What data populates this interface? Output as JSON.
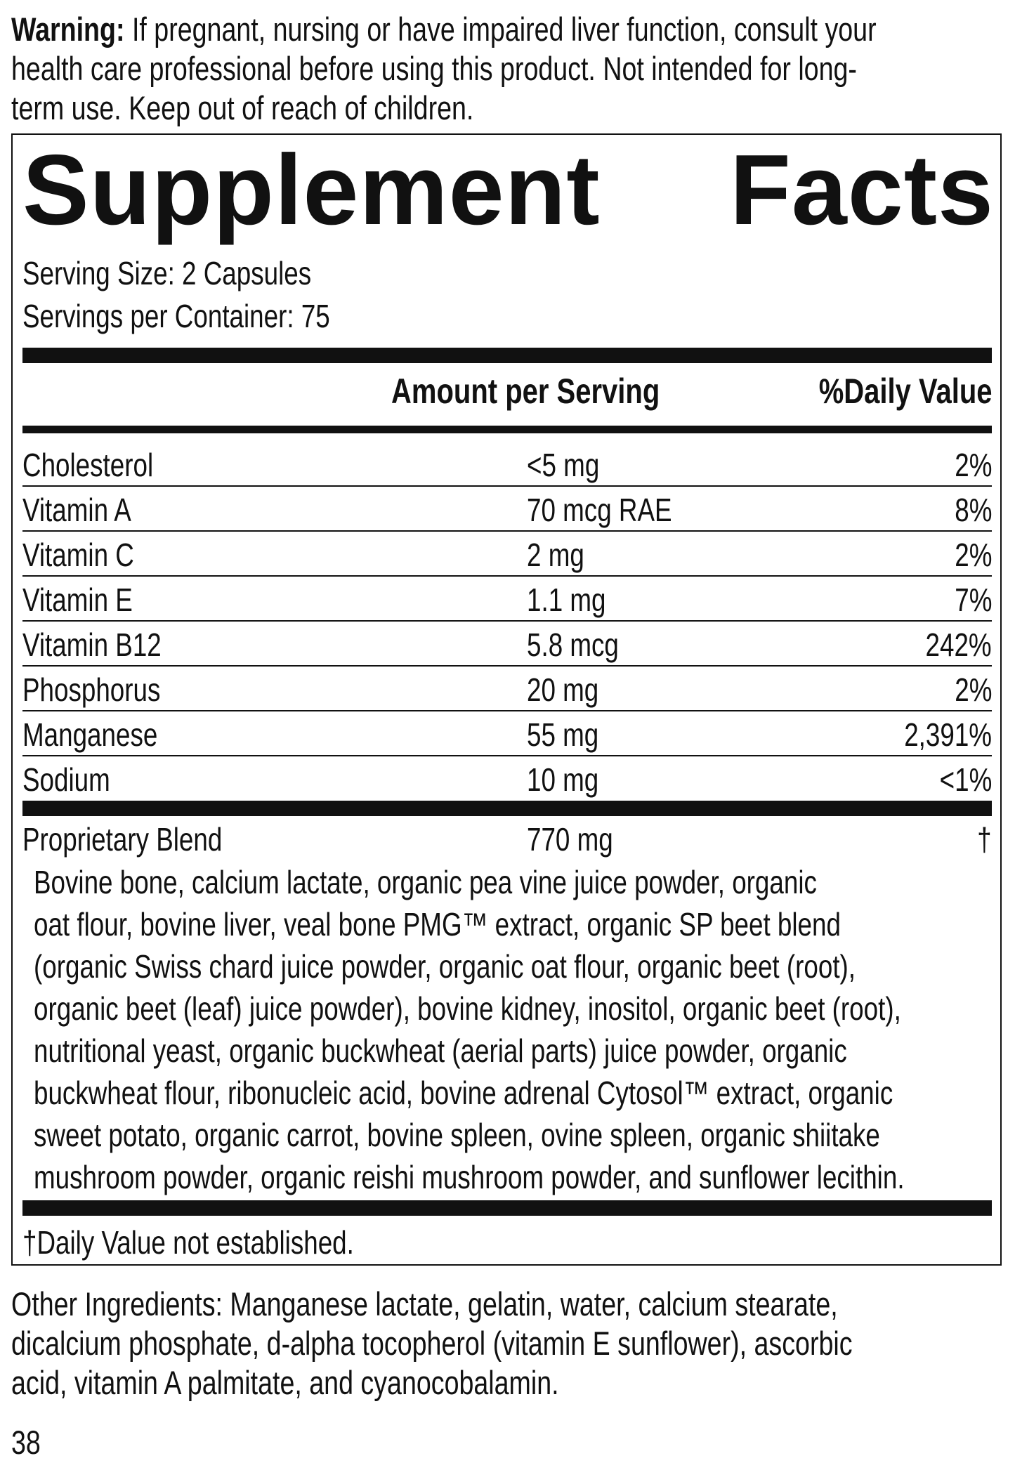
{
  "warning": {
    "label": "Warning:",
    "lines": [
      "If pregnant, nursing or have impaired liver function, consult your",
      "health care professional before using this product. Not intended for long-",
      "term use. Keep out of reach of children."
    ]
  },
  "title": {
    "word1": "Supplement",
    "word2": "Facts"
  },
  "serving_size": "Serving Size: 2 Capsules",
  "servings_per_container": "Servings per Container: 75",
  "headers": {
    "amount": "Amount per Serving",
    "dv": "%Daily Value"
  },
  "rows": [
    {
      "name": "Cholesterol",
      "amount": "<5 mg",
      "dv": "2%"
    },
    {
      "name": "Vitamin A",
      "amount": "70 mcg RAE",
      "dv": "8%"
    },
    {
      "name": "Vitamin C",
      "amount": "2 mg",
      "dv": "2%"
    },
    {
      "name": "Vitamin E",
      "amount": "1.1 mg",
      "dv": "7%"
    },
    {
      "name": "Vitamin B12",
      "amount": "5.8 mcg",
      "dv": "242%"
    },
    {
      "name": "Phosphorus",
      "amount": "20 mg",
      "dv": "2%"
    },
    {
      "name": "Manganese",
      "amount": "55 mg",
      "dv": "2,391%"
    },
    {
      "name": "Sodium",
      "amount": "10 mg",
      "dv": "<1%"
    }
  ],
  "blend": {
    "name": "Proprietary Blend",
    "amount": "770 mg",
    "dv": "†",
    "lines": [
      "Bovine bone, calcium lactate, organic pea vine juice powder, organic",
      "oat flour, bovine liver, veal bone PMG™ extract, organic SP beet blend",
      "(organic Swiss chard juice powder, organic oat flour, organic beet (root),",
      "organic beet (leaf) juice powder), bovine kidney, inositol, organic beet (root),",
      "nutritional yeast, organic buckwheat (aerial parts) juice powder, organic",
      "buckwheat flour, ribonucleic acid, bovine adrenal Cytosol™ extract, organic",
      "sweet potato, organic carrot, bovine spleen, ovine spleen, organic shiitake",
      "mushroom powder, organic reishi mushroom powder, and sunflower lecithin."
    ]
  },
  "footnote": "†Daily Value not established.",
  "other_ingredients": [
    "Other Ingredients: Manganese lactate, gelatin, water, calcium stearate,",
    "dicalcium phosphate, d-alpha tocopherol (vitamin E sunflower), ascorbic",
    "acid, vitamin A palmitate, and cyanocobalamin."
  ],
  "page_number": "38"
}
